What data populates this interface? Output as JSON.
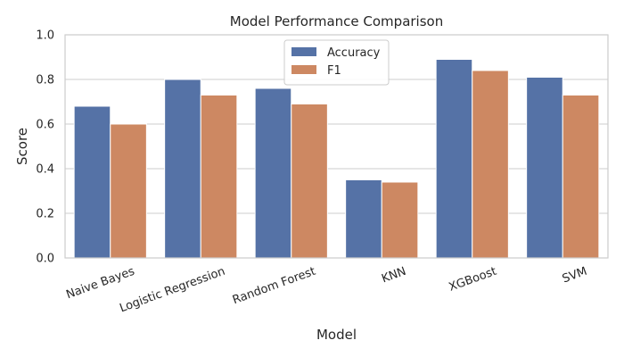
{
  "chart_data": {
    "type": "bar",
    "title": "Model Performance Comparison",
    "xlabel": "Model",
    "ylabel": "Score",
    "categories": [
      "Naive Bayes",
      "Logistic Regression",
      "Random Forest",
      "KNN",
      "XGBoost",
      "SVM"
    ],
    "series": [
      {
        "name": "Accuracy",
        "color": "#5572a6",
        "values": [
          0.68,
          0.8,
          0.76,
          0.35,
          0.89,
          0.81
        ]
      },
      {
        "name": "F1",
        "color": "#cd8862",
        "values": [
          0.6,
          0.73,
          0.69,
          0.34,
          0.84,
          0.73
        ]
      }
    ],
    "ylim": [
      0,
      1.0
    ],
    "yticks": [
      "0.0",
      "0.2",
      "0.4",
      "0.6",
      "0.8",
      "1.0"
    ],
    "grid": "horizontal",
    "legend_position": "top-center"
  }
}
